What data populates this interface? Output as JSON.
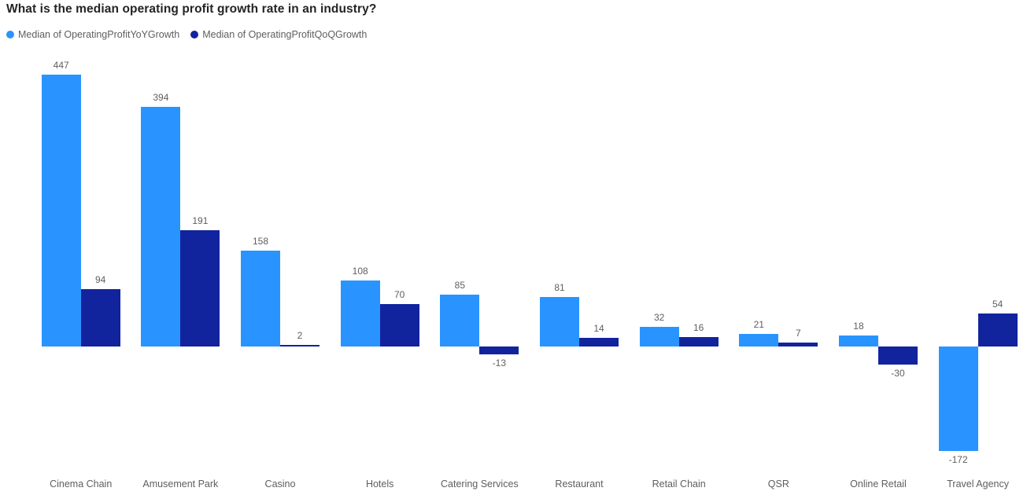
{
  "chart_data": {
    "type": "bar",
    "title": "What is the median operating profit growth rate in an industry?",
    "categories": [
      "Cinema Chain",
      "Amusement Park",
      "Casino",
      "Hotels",
      "Catering Services",
      "Restaurant",
      "Retail Chain",
      "QSR",
      "Online Retail",
      "Travel Agency"
    ],
    "series": [
      {
        "name": "Median of OperatingProfitYoYGrowth",
        "color": "#2994FF",
        "values": [
          447,
          394,
          158,
          108,
          85,
          81,
          32,
          21,
          18,
          -172
        ]
      },
      {
        "name": "Median of OperatingProfitQoQGrowth",
        "color": "#12239E",
        "values": [
          94,
          191,
          2,
          70,
          -13,
          14,
          16,
          7,
          -30,
          54
        ]
      }
    ],
    "xlabel": "",
    "ylabel": "",
    "ylim": [
      -200,
      470
    ],
    "grid": false,
    "axis_lines": false,
    "data_labels": true,
    "legend_position": "top-left"
  },
  "colors": {
    "title_text": "#252423",
    "label_text": "#605E5C",
    "background": "#ffffff"
  }
}
